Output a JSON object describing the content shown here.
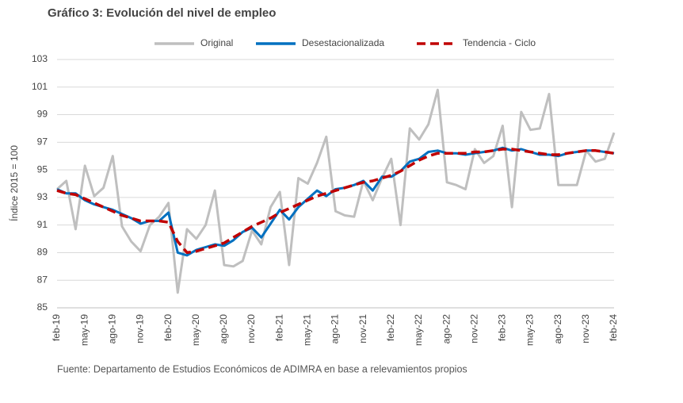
{
  "chart_data": {
    "type": "line",
    "title": "Gráfico 3: Evolución del nivel de empleo",
    "y_label": "Índice 2015 = 100",
    "source": "Fuente: Departamento de Estudios Económicos de ADIMRA en base a relevamientos propios",
    "categories": [
      "feb-19",
      null,
      null,
      "may-19",
      null,
      null,
      "ago-19",
      null,
      null,
      "nov-19",
      null,
      null,
      "feb-20",
      null,
      null,
      "may-20",
      null,
      null,
      "ago-20",
      null,
      null,
      "nov-20",
      null,
      null,
      "feb-21",
      null,
      null,
      "may-21",
      null,
      null,
      "ago-21",
      null,
      null,
      "nov-21",
      null,
      null,
      "feb-22",
      null,
      null,
      "may-22",
      null,
      null,
      "ago-22",
      null,
      null,
      "nov-22",
      null,
      null,
      "feb-23",
      null,
      null,
      "may-23",
      null,
      null,
      "ago-23",
      null,
      null,
      "nov-23",
      null,
      null,
      "feb-24"
    ],
    "series": [
      {
        "name": "Original",
        "color": "#bfbfbf",
        "dashed": false,
        "values": [
          93.6,
          94.2,
          90.7,
          95.3,
          93.1,
          93.7,
          96.0,
          90.9,
          89.8,
          89.1,
          91.0,
          91.6,
          92.6,
          86.1,
          90.7,
          90.0,
          91.0,
          93.5,
          88.1,
          88.0,
          88.4,
          90.6,
          89.6,
          92.3,
          93.4,
          88.1,
          94.4,
          94.0,
          95.5,
          97.4,
          92.0,
          91.7,
          91.6,
          94.2,
          92.8,
          94.4,
          95.8,
          91.0,
          98.0,
          97.2,
          98.3,
          100.8,
          94.1,
          93.9,
          93.6,
          96.5,
          95.5,
          96.0,
          98.2,
          92.3,
          99.2,
          97.9,
          98.0,
          100.5,
          93.9,
          93.9,
          93.9,
          96.4,
          95.6,
          95.8,
          97.7
        ]
      },
      {
        "name": "Desestacionalizada",
        "color": "#0070c0",
        "dashed": false,
        "values": [
          93.6,
          93.3,
          93.3,
          92.8,
          92.5,
          92.3,
          92.1,
          91.8,
          91.5,
          91.1,
          91.3,
          91.3,
          91.9,
          89.0,
          88.8,
          89.2,
          89.4,
          89.6,
          89.5,
          89.9,
          90.5,
          90.8,
          90.1,
          91.1,
          92.1,
          91.4,
          92.3,
          92.9,
          93.5,
          93.1,
          93.6,
          93.7,
          93.9,
          94.2,
          93.5,
          94.5,
          94.5,
          94.9,
          95.6,
          95.8,
          96.3,
          96.4,
          96.2,
          96.2,
          96.1,
          96.2,
          96.3,
          96.4,
          96.6,
          96.4,
          96.5,
          96.3,
          96.1,
          96.1,
          96.0,
          96.2,
          96.3,
          96.4,
          96.4,
          96.3,
          96.2
        ]
      },
      {
        "name": "Tendencia - Ciclo",
        "color": "#c00000",
        "dashed": true,
        "values": [
          93.5,
          93.3,
          93.2,
          92.9,
          92.6,
          92.3,
          92.0,
          91.7,
          91.5,
          91.3,
          91.3,
          91.3,
          91.2,
          89.8,
          89.0,
          89.1,
          89.3,
          89.5,
          89.7,
          90.1,
          90.5,
          90.9,
          91.2,
          91.5,
          91.9,
          92.2,
          92.5,
          92.8,
          93.1,
          93.3,
          93.5,
          93.7,
          93.9,
          94.1,
          94.2,
          94.4,
          94.6,
          94.9,
          95.3,
          95.7,
          96.0,
          96.2,
          96.2,
          96.2,
          96.2,
          96.3,
          96.3,
          96.4,
          96.5,
          96.5,
          96.4,
          96.3,
          96.2,
          96.1,
          96.1,
          96.2,
          96.3,
          96.4,
          96.4,
          96.3,
          96.2
        ]
      }
    ],
    "ylim": [
      85,
      103
    ],
    "yticks": [
      85,
      87,
      89,
      91,
      93,
      95,
      97,
      99,
      101,
      103
    ],
    "grid": true,
    "legend": "top"
  }
}
